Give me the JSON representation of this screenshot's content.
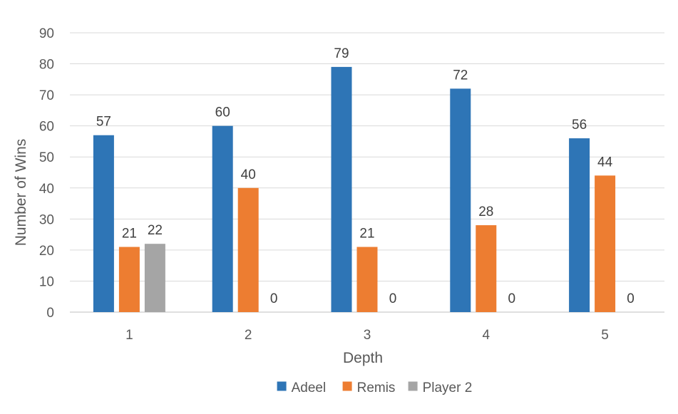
{
  "chart_data": {
    "type": "bar",
    "title": "",
    "xlabel": "Depth",
    "ylabel": "Number of Wins",
    "categories": [
      "1",
      "2",
      "3",
      "4",
      "5"
    ],
    "series": [
      {
        "name": "Adeel",
        "color": "#2E75B6",
        "values": [
          57,
          60,
          79,
          72,
          56
        ]
      },
      {
        "name": "Remis",
        "color": "#ED7D31",
        "values": [
          21,
          40,
          21,
          28,
          44
        ]
      },
      {
        "name": "Player 2",
        "color": "#A5A5A5",
        "values": [
          22,
          0,
          0,
          0,
          0
        ]
      }
    ],
    "ylim": [
      0,
      90
    ],
    "yticks": [
      0,
      10,
      20,
      30,
      40,
      50,
      60,
      70,
      80,
      90
    ],
    "grid": true,
    "legend_position": "bottom",
    "data_labels": true
  }
}
